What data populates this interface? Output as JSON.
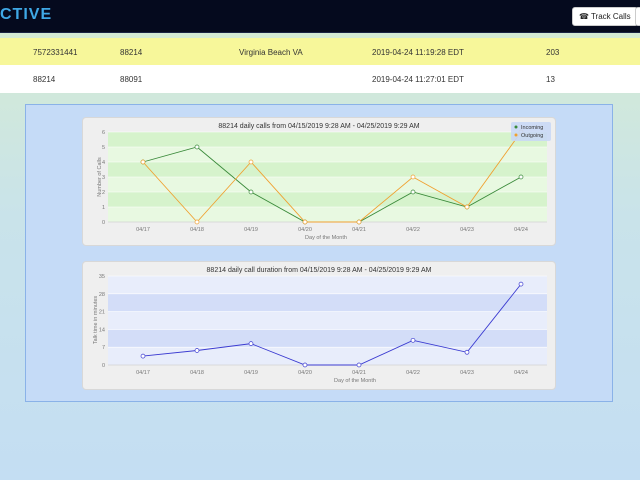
{
  "header": {
    "brand": "CTIVE",
    "track_calls_label": "Track Calls"
  },
  "table": {
    "rows": [
      [
        "7572331441",
        "88214",
        "Virginia Beach VA",
        "2019-04-24 11:19:28 EDT",
        "203"
      ],
      [
        "88214",
        "88091",
        "",
        "2019-04-24 11:27:01 EDT",
        "13"
      ]
    ]
  },
  "colors": {
    "incoming": "#3a8a3a",
    "outgoing": "#f0a030",
    "duration": "#3b3bd1",
    "highlight_row": "#f7f79a"
  },
  "chart_data": [
    {
      "type": "line",
      "title": "88214 daily calls from 04/15/2019 9:28 AM - 04/25/2019 9:29 AM",
      "xlabel": "Day of the Month",
      "ylabel": "Number of Calls",
      "categories": [
        "04/17",
        "04/18",
        "04/19",
        "04/20",
        "04/21",
        "04/22",
        "04/23",
        "04/24"
      ],
      "ylim": [
        0,
        6
      ],
      "yticks": [
        0,
        1,
        2,
        3,
        4,
        5,
        6
      ],
      "legend_position": "top-right",
      "grid": true,
      "series": [
        {
          "name": "Incoming",
          "values": [
            4,
            5,
            2,
            0,
            0,
            2,
            1,
            3
          ]
        },
        {
          "name": "Outgoing",
          "values": [
            4,
            0,
            4,
            0,
            0,
            3,
            1,
            6
          ]
        }
      ]
    },
    {
      "type": "line",
      "title": "88214 daily call duration from 04/15/2019 9:28 AM - 04/25/2019 9:29 AM",
      "xlabel": "Day of the Month",
      "ylabel": "Talk time in minutes",
      "categories": [
        "04/17",
        "04/18",
        "04/19",
        "04/20",
        "04/21",
        "04/22",
        "04/23",
        "04/24"
      ],
      "ylim": [
        0,
        35
      ],
      "yticks": [
        0,
        7,
        14,
        21,
        28,
        35
      ],
      "grid": true,
      "series": [
        {
          "values": [
            3.5,
            5.7,
            8.4,
            0,
            0,
            9.7,
            5,
            31.8
          ]
        }
      ]
    }
  ]
}
